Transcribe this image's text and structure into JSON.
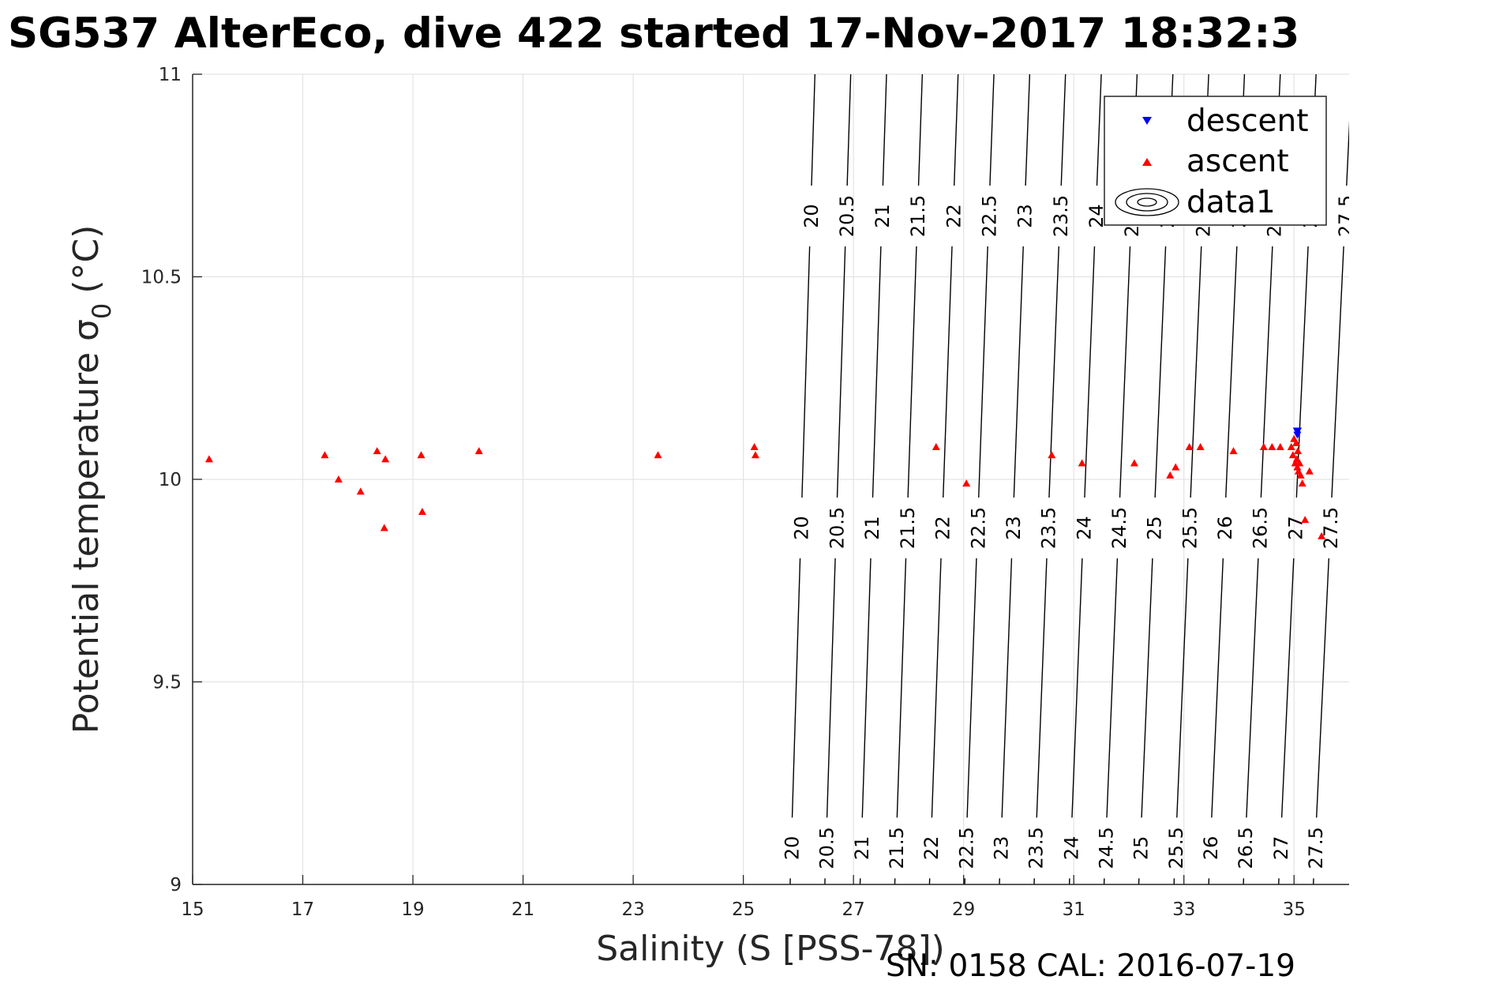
{
  "chart_data": {
    "type": "scatter",
    "title": "SG537 AlterEco, dive 422 started 17-Nov-2017 18:32:3",
    "xlabel": "Salinity (S [PSS-78])",
    "ylabel": "Potential temperature σ",
    "ylabel_subscript": "0",
    "ylabel_unit": "(°C)",
    "xlim": [
      15,
      36
    ],
    "ylim": [
      9,
      11
    ],
    "grid": true,
    "x_ticks": [
      "15",
      "17",
      "19",
      "21",
      "23",
      "25",
      "27",
      "29",
      "31",
      "33",
      "35"
    ],
    "y_ticks": [
      "9",
      "9.5",
      "10",
      "10.5",
      "11"
    ],
    "legend": {
      "placement": "top-right",
      "entries": [
        {
          "label": "descent",
          "marker": "triangle-down",
          "color": "#0000ff"
        },
        {
          "label": "ascent",
          "marker": "triangle-up",
          "color": "#ff0000"
        },
        {
          "label": "data1",
          "marker": "contour",
          "color": "#000000"
        }
      ]
    },
    "series": [
      {
        "name": "descent",
        "marker": "triangle-down",
        "color": "#0000ff",
        "points": [
          [
            35.05,
            10.12
          ],
          [
            35.06,
            10.11
          ],
          [
            35.07,
            10.12
          ]
        ]
      },
      {
        "name": "ascent",
        "marker": "triangle-up",
        "color": "#ff0000",
        "points": [
          [
            15.3,
            10.05
          ],
          [
            17.4,
            10.06
          ],
          [
            17.65,
            10.0
          ],
          [
            18.05,
            9.97
          ],
          [
            18.35,
            10.07
          ],
          [
            18.5,
            10.05
          ],
          [
            18.48,
            9.88
          ],
          [
            19.15,
            10.06
          ],
          [
            19.17,
            9.92
          ],
          [
            20.2,
            10.07
          ],
          [
            23.45,
            10.06
          ],
          [
            25.2,
            10.08
          ],
          [
            25.22,
            10.06
          ],
          [
            28.5,
            10.08
          ],
          [
            29.05,
            9.99
          ],
          [
            30.6,
            10.06
          ],
          [
            31.15,
            10.04
          ],
          [
            32.1,
            10.04
          ],
          [
            32.75,
            10.01
          ],
          [
            32.85,
            10.03
          ],
          [
            33.1,
            10.08
          ],
          [
            33.3,
            10.08
          ],
          [
            33.9,
            10.07
          ],
          [
            34.45,
            10.08
          ],
          [
            34.6,
            10.08
          ],
          [
            34.75,
            10.08
          ],
          [
            34.95,
            10.08
          ],
          [
            34.98,
            10.06
          ],
          [
            35.0,
            10.1
          ],
          [
            35.02,
            10.04
          ],
          [
            35.04,
            10.09
          ],
          [
            35.05,
            10.05
          ],
          [
            35.06,
            10.03
          ],
          [
            35.07,
            10.07
          ],
          [
            35.08,
            10.02
          ],
          [
            35.1,
            10.04
          ],
          [
            35.12,
            10.01
          ],
          [
            35.15,
            9.99
          ],
          [
            35.2,
            9.9
          ],
          [
            35.28,
            10.02
          ],
          [
            35.5,
            9.86
          ]
        ]
      }
    ],
    "contours": {
      "name": "data1",
      "color": "#000000",
      "levels": [
        "20",
        "20.5",
        "21",
        "21.5",
        "22",
        "22.5",
        "23",
        "23.5",
        "24",
        "24.5",
        "25",
        "25.5",
        "26",
        "26.5",
        "27",
        "27.5"
      ],
      "salinity_at_t9": [
        25.85,
        26.48,
        27.12,
        27.75,
        28.38,
        29.02,
        29.65,
        30.28,
        30.92,
        31.55,
        32.18,
        32.82,
        33.45,
        34.08,
        34.72,
        35.35
      ],
      "salinity_at_t11": [
        26.3,
        26.95,
        27.6,
        28.25,
        28.9,
        29.55,
        30.2,
        30.85,
        31.5,
        32.15,
        32.8,
        33.45,
        34.1,
        34.75,
        35.4,
        36.05
      ]
    }
  },
  "footer": {
    "text": "SN: 0158  CAL: 2016-07-19"
  }
}
